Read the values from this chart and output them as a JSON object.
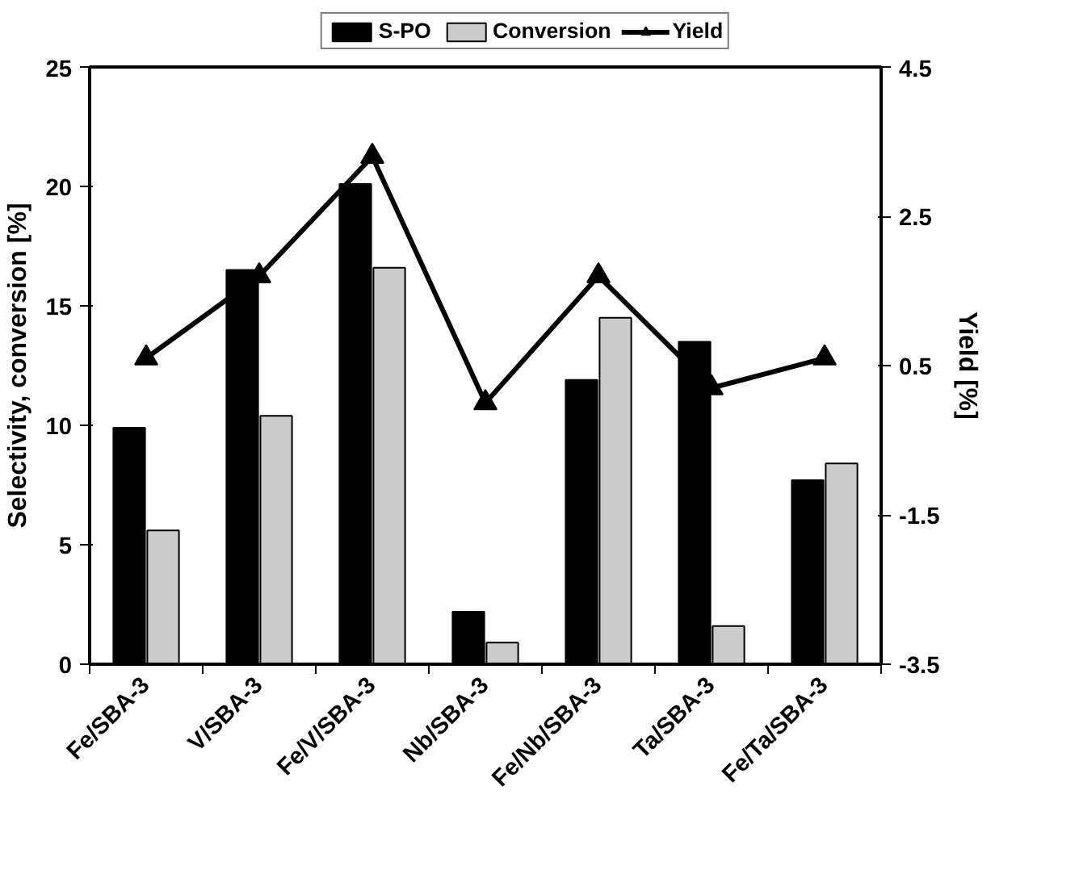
{
  "chart_data": {
    "type": "bar",
    "ylabel": "Selectivity, conversion [%]",
    "y2label": "Yield [%]",
    "categories": [
      "Fe/SBA-3",
      "V/SBA-3",
      "Fe/V/SBA-3",
      "Nb/SBA-3",
      "Fe/Nb/SBA-3",
      "Ta/SBA-3",
      "Fe/Ta/SBA-3"
    ],
    "series": [
      {
        "name": "S-PO",
        "color": "#000000",
        "values": [
          9.9,
          16.5,
          20.1,
          2.2,
          11.9,
          13.5,
          7.7
        ]
      },
      {
        "name": "Conversion",
        "color": "#cccccc",
        "values": [
          5.6,
          10.4,
          16.6,
          0.9,
          14.5,
          1.6,
          8.4
        ]
      },
      {
        "name": "Yield",
        "type": "line",
        "axis": "y2",
        "color": "#000000",
        "marker": "triangle",
        "values": [
          0.6,
          1.7,
          3.3,
          0.0,
          1.7,
          0.2,
          0.6
        ]
      }
    ],
    "ylim": [
      0,
      25
    ],
    "yticks": [
      0,
      5,
      10,
      15,
      20,
      25
    ],
    "y2lim": [
      -3.5,
      4.5
    ],
    "y2ticks": [
      -3.5,
      -1.5,
      0.5,
      2.5,
      4.5
    ],
    "grid": false,
    "legend": "top"
  }
}
